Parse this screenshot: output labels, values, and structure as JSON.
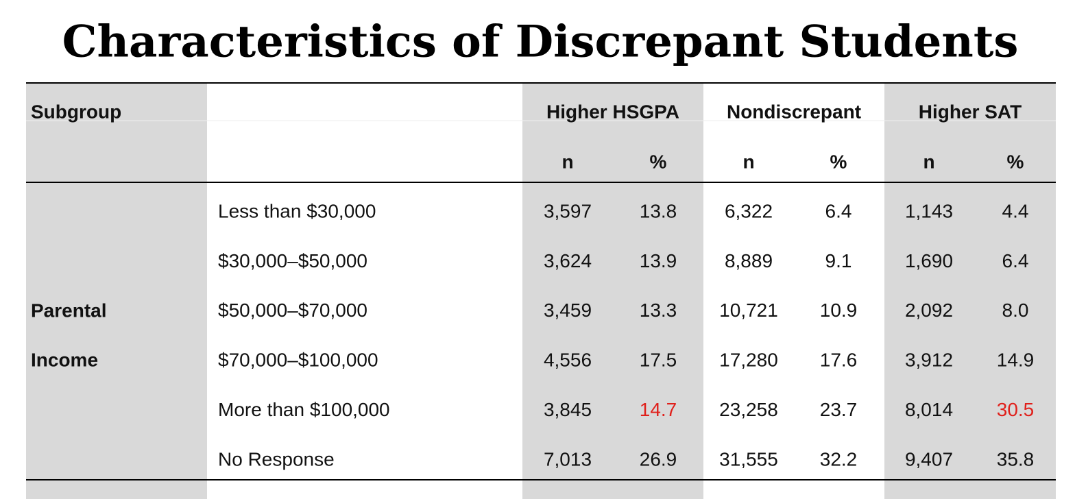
{
  "title": "Characteristics of Discrepant Students",
  "table": {
    "corner": "Subgroup",
    "groups": [
      "Higher HSGPA",
      "Nondiscrepant",
      "Higher SAT"
    ],
    "subheaders": [
      "n",
      "%",
      "n",
      "%",
      "n",
      "%"
    ],
    "row_group": [
      "Parental",
      "Income"
    ],
    "highlight_color": "#e0201b",
    "rows": [
      {
        "label": "Less than $30,000",
        "cells": [
          "3,597",
          "13.8",
          "6,322",
          "6.4",
          "1,143",
          "4.4"
        ],
        "highlight": []
      },
      {
        "label": "$30,000–$50,000",
        "cells": [
          "3,624",
          "13.9",
          "8,889",
          "9.1",
          "1,690",
          "6.4"
        ],
        "highlight": []
      },
      {
        "label": "$50,000–$70,000",
        "cells": [
          "3,459",
          "13.3",
          "10,721",
          "10.9",
          "2,092",
          "8.0"
        ],
        "highlight": []
      },
      {
        "label": "$70,000–$100,000",
        "cells": [
          "4,556",
          "17.5",
          "17,280",
          "17.6",
          "3,912",
          "14.9"
        ],
        "highlight": []
      },
      {
        "label": "More than $100,000",
        "cells": [
          "3,845",
          "14.7",
          "23,258",
          "23.7",
          "8,014",
          "30.5"
        ],
        "highlight": [
          1,
          5
        ]
      },
      {
        "label": "No Response",
        "cells": [
          "7,013",
          "26.9",
          "31,555",
          "32.2",
          "9,407",
          "35.8"
        ],
        "highlight": []
      }
    ]
  }
}
